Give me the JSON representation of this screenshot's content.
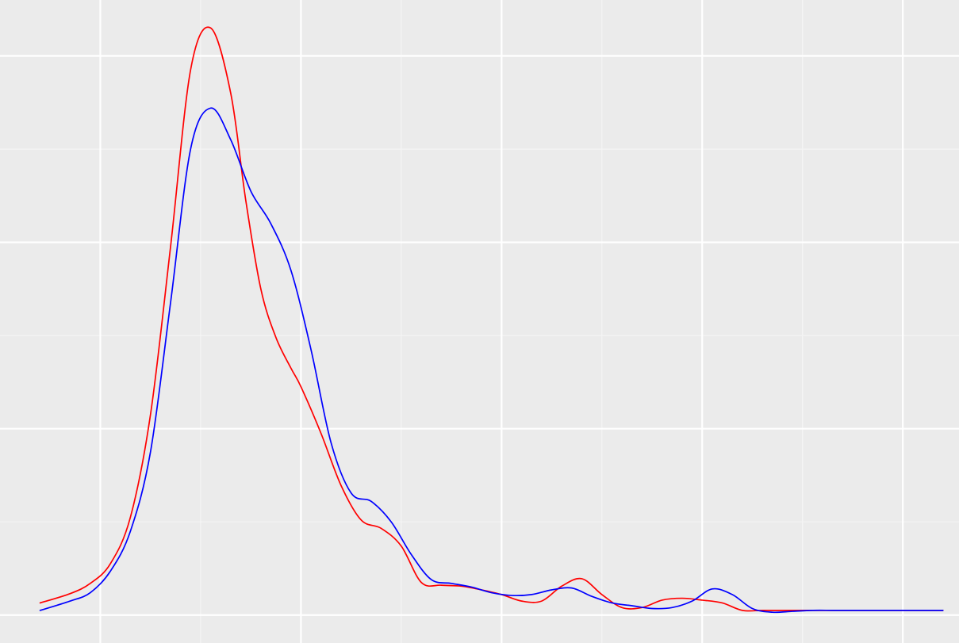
{
  "chart_data": {
    "type": "line",
    "title": "",
    "xlabel": "",
    "ylabel": "",
    "xlim": [
      0.0,
      9.56
    ],
    "ylim": [
      -0.3,
      6.6
    ],
    "grid": true,
    "x_gridlines_major": [
      1,
      3,
      5,
      7,
      9
    ],
    "x_gridlines_minor": [
      2,
      4,
      6,
      8
    ],
    "y_gridlines_major": [
      0,
      2,
      4,
      6
    ],
    "y_gridlines_minor": [
      1,
      3,
      5
    ],
    "colors": {
      "background": "#ebebeb",
      "grid": "#ffffff"
    },
    "series": [
      {
        "color": "#ff0000",
        "x": [
          0.4,
          0.7,
          0.9,
          1.1,
          1.3,
          1.5,
          1.7,
          1.9,
          2.1,
          2.3,
          2.45,
          2.6,
          2.75,
          2.9,
          3.0,
          3.2,
          3.4,
          3.6,
          3.8,
          4.0,
          4.2,
          4.4,
          4.6,
          4.8,
          5.0,
          5.2,
          5.4,
          5.6,
          5.8,
          6.0,
          6.2,
          6.4,
          6.6,
          6.8,
          7.0,
          7.2,
          7.4,
          7.6,
          7.8,
          8.0,
          8.2,
          8.4,
          8.6,
          8.8,
          9.0,
          9.2,
          9.4
        ],
        "y": [
          0.13,
          0.23,
          0.34,
          0.55,
          1.05,
          2.15,
          3.95,
          5.85,
          6.3,
          5.6,
          4.45,
          3.5,
          2.98,
          2.65,
          2.45,
          1.95,
          1.39,
          1.02,
          0.93,
          0.74,
          0.35,
          0.32,
          0.31,
          0.27,
          0.22,
          0.15,
          0.15,
          0.31,
          0.39,
          0.22,
          0.08,
          0.08,
          0.16,
          0.18,
          0.16,
          0.13,
          0.05,
          0.05,
          0.05,
          0.05,
          0.05,
          0.05,
          0.05,
          0.05,
          0.05,
          0.05,
          0.05
        ]
      },
      {
        "color": "#0000ff",
        "x": [
          0.4,
          0.7,
          0.9,
          1.1,
          1.3,
          1.5,
          1.7,
          1.9,
          2.1,
          2.3,
          2.5,
          2.7,
          2.9,
          3.1,
          3.3,
          3.5,
          3.7,
          3.9,
          4.1,
          4.3,
          4.5,
          4.7,
          4.9,
          5.1,
          5.3,
          5.5,
          5.7,
          5.9,
          6.1,
          6.3,
          6.5,
          6.7,
          6.9,
          7.1,
          7.3,
          7.5,
          7.7,
          7.9,
          8.1,
          8.3,
          8.5,
          8.7,
          8.9,
          9.1,
          9.3,
          9.4
        ],
        "y": [
          0.05,
          0.15,
          0.24,
          0.47,
          0.9,
          1.75,
          3.35,
          5.0,
          5.44,
          5.1,
          4.55,
          4.2,
          3.7,
          2.85,
          1.85,
          1.31,
          1.22,
          1.0,
          0.65,
          0.38,
          0.34,
          0.3,
          0.24,
          0.21,
          0.22,
          0.27,
          0.29,
          0.2,
          0.13,
          0.1,
          0.07,
          0.08,
          0.15,
          0.28,
          0.22,
          0.07,
          0.03,
          0.04,
          0.05,
          0.05,
          0.05,
          0.05,
          0.05,
          0.05,
          0.05,
          0.05
        ]
      }
    ]
  }
}
